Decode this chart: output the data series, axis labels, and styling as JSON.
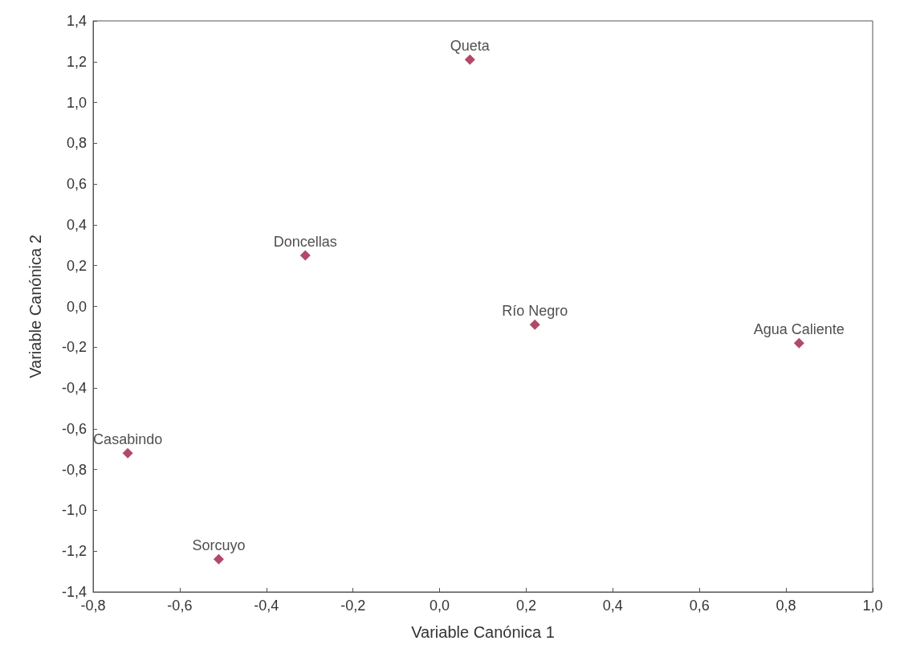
{
  "chart_data": {
    "type": "scatter",
    "xlabel": "Variable Canónica 1",
    "ylabel": "Variable Canónica 2",
    "x": [
      0.07,
      -0.31,
      0.22,
      0.83,
      -0.72,
      -0.51
    ],
    "values": [
      1.21,
      0.25,
      -0.09,
      -0.18,
      -0.72,
      -1.24
    ],
    "color": "#a01c44",
    "marker": "diamond",
    "grid": false,
    "annotations": [
      {
        "text": "Queta",
        "x": 0.07,
        "y": 1.21
      },
      {
        "text": "Doncellas",
        "x": -0.31,
        "y": 0.25
      },
      {
        "text": "Río Negro",
        "x": 0.22,
        "y": -0.09
      },
      {
        "text": "Agua Caliente",
        "x": 0.83,
        "y": -0.18
      },
      {
        "text": "Casabindo",
        "x": -0.72,
        "y": -0.72
      },
      {
        "text": "Sorcuyo",
        "x": -0.51,
        "y": -1.24
      }
    ],
    "xlim": [
      -0.8,
      1.0
    ],
    "xticks": [
      {
        "value": -0.8,
        "label": "-0,8"
      },
      {
        "value": -0.6,
        "label": "-0,6"
      },
      {
        "value": -0.4,
        "label": "-0,4"
      },
      {
        "value": -0.2,
        "label": "-0,2"
      },
      {
        "value": 0,
        "label": "0,0"
      },
      {
        "value": 0.2,
        "label": "0,2"
      },
      {
        "value": 0.4,
        "label": "0,4"
      },
      {
        "value": 0.6,
        "label": "0,6"
      },
      {
        "value": 0.8,
        "label": "0,8"
      },
      {
        "value": 1.0,
        "label": "1,0"
      }
    ],
    "ylim": [
      -1.4,
      1.4
    ],
    "yticks": [
      {
        "value": -1.4,
        "label": "-1,4"
      },
      {
        "value": -1.2,
        "label": "-1,2"
      },
      {
        "value": -1.0,
        "label": "-1,0"
      },
      {
        "value": -0.8,
        "label": "-0,8"
      },
      {
        "value": -0.6,
        "label": "-0,6"
      },
      {
        "value": -0.4,
        "label": "-0,4"
      },
      {
        "value": -0.2,
        "label": "-0,2"
      },
      {
        "value": 0,
        "label": "0,0"
      },
      {
        "value": 0.2,
        "label": "0,2"
      },
      {
        "value": 0.4,
        "label": "0,4"
      },
      {
        "value": 0.6,
        "label": "0,6"
      },
      {
        "value": 0.8,
        "label": "0,8"
      },
      {
        "value": 1.0,
        "label": "1,0"
      },
      {
        "value": 1.2,
        "label": "1,2"
      },
      {
        "value": 1.4,
        "label": "1,4"
      }
    ]
  }
}
